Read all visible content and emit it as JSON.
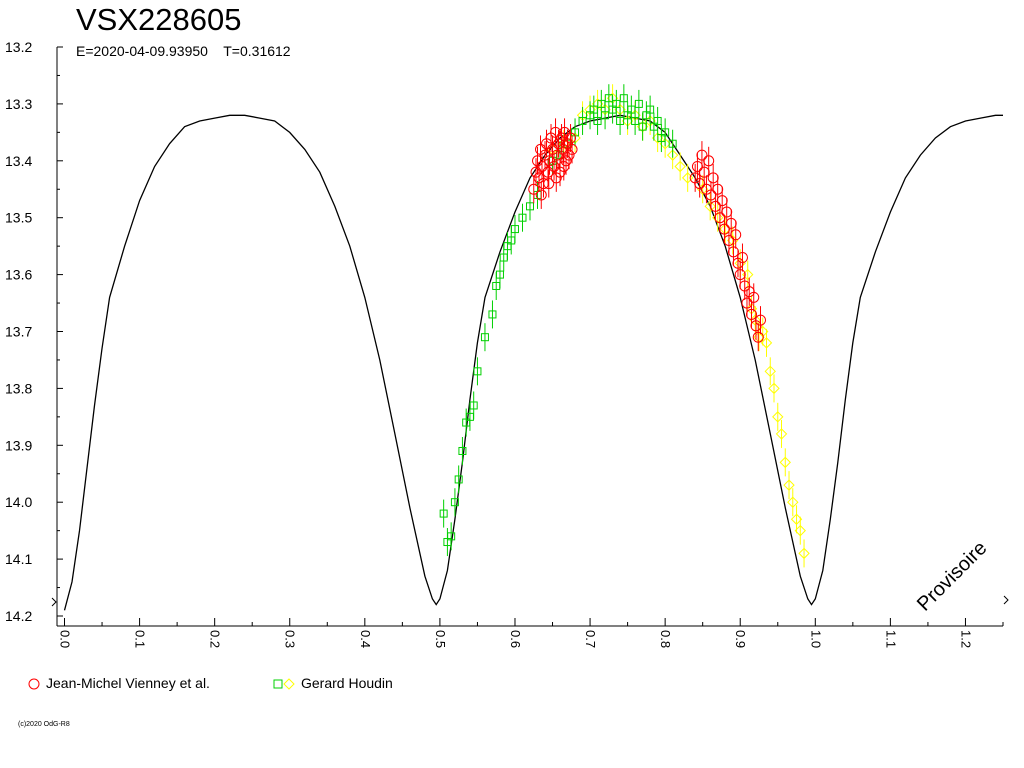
{
  "chart_data": {
    "type": "scatter",
    "title": "VSX228605",
    "subtitle": "E=2020-04-09.93950    T=0.31612",
    "annotation": "Provisoire",
    "xlim": [
      -0.01,
      1.25
    ],
    "ylim": [
      13.2,
      14.2
    ],
    "y_inverted": true,
    "x_ticks": [
      "0.0",
      "0.1",
      "0.2",
      "0.3",
      "0.4",
      "0.5",
      "0.6",
      "0.7",
      "0.8",
      "0.9",
      "1.0",
      "1.1",
      "1.2"
    ],
    "y_ticks": [
      "13.2",
      "13.3",
      "13.4",
      "13.5",
      "13.6",
      "13.7",
      "13.8",
      "13.9",
      "14.0",
      "14.1",
      "14.2"
    ],
    "grid": false,
    "legend_placement": "bottom-left",
    "model_curve": {
      "color": "#000000",
      "points": [
        [
          0.0,
          14.19
        ],
        [
          0.01,
          14.14
        ],
        [
          0.02,
          14.05
        ],
        [
          0.03,
          13.94
        ],
        [
          0.04,
          13.83
        ],
        [
          0.05,
          13.73
        ],
        [
          0.06,
          13.64
        ],
        [
          0.08,
          13.55
        ],
        [
          0.1,
          13.47
        ],
        [
          0.12,
          13.41
        ],
        [
          0.14,
          13.37
        ],
        [
          0.16,
          13.34
        ],
        [
          0.18,
          13.33
        ],
        [
          0.2,
          13.325
        ],
        [
          0.22,
          13.32
        ],
        [
          0.24,
          13.32
        ],
        [
          0.26,
          13.325
        ],
        [
          0.28,
          13.33
        ],
        [
          0.3,
          13.35
        ],
        [
          0.32,
          13.38
        ],
        [
          0.34,
          13.42
        ],
        [
          0.36,
          13.48
        ],
        [
          0.38,
          13.55
        ],
        [
          0.4,
          13.64
        ],
        [
          0.42,
          13.75
        ],
        [
          0.44,
          13.88
        ],
        [
          0.46,
          14.01
        ],
        [
          0.48,
          14.13
        ],
        [
          0.49,
          14.17
        ],
        [
          0.495,
          14.18
        ],
        [
          0.5,
          14.17
        ],
        [
          0.51,
          14.12
        ],
        [
          0.52,
          14.03
        ],
        [
          0.53,
          13.93
        ],
        [
          0.54,
          13.82
        ],
        [
          0.55,
          13.72
        ],
        [
          0.56,
          13.64
        ],
        [
          0.58,
          13.56
        ],
        [
          0.6,
          13.49
        ],
        [
          0.62,
          13.43
        ],
        [
          0.64,
          13.39
        ],
        [
          0.66,
          13.36
        ],
        [
          0.68,
          13.34
        ],
        [
          0.7,
          13.33
        ],
        [
          0.72,
          13.325
        ],
        [
          0.74,
          13.32
        ],
        [
          0.76,
          13.325
        ],
        [
          0.78,
          13.33
        ],
        [
          0.8,
          13.35
        ],
        [
          0.82,
          13.39
        ],
        [
          0.84,
          13.43
        ],
        [
          0.86,
          13.48
        ],
        [
          0.88,
          13.55
        ],
        [
          0.9,
          13.64
        ],
        [
          0.92,
          13.75
        ],
        [
          0.94,
          13.88
        ],
        [
          0.96,
          14.01
        ],
        [
          0.98,
          14.13
        ],
        [
          0.99,
          14.17
        ],
        [
          0.995,
          14.18
        ],
        [
          1.0,
          14.17
        ],
        [
          1.01,
          14.12
        ],
        [
          1.02,
          14.03
        ],
        [
          1.03,
          13.93
        ],
        [
          1.04,
          13.82
        ],
        [
          1.05,
          13.72
        ],
        [
          1.06,
          13.64
        ],
        [
          1.08,
          13.56
        ],
        [
          1.1,
          13.49
        ],
        [
          1.12,
          13.43
        ],
        [
          1.14,
          13.39
        ],
        [
          1.16,
          13.36
        ],
        [
          1.18,
          13.34
        ],
        [
          1.2,
          13.33
        ],
        [
          1.22,
          13.325
        ],
        [
          1.24,
          13.32
        ],
        [
          1.25,
          13.32
        ]
      ]
    },
    "series": [
      {
        "name": "Jean-Michel Vienney et al.",
        "marker": "circle",
        "color": "#ff0000",
        "points": [
          [
            0.625,
            13.45
          ],
          [
            0.628,
            13.42
          ],
          [
            0.63,
            13.4
          ],
          [
            0.632,
            13.43
          ],
          [
            0.634,
            13.38
          ],
          [
            0.636,
            13.41
          ],
          [
            0.638,
            13.44
          ],
          [
            0.64,
            13.39
          ],
          [
            0.642,
            13.37
          ],
          [
            0.644,
            13.42
          ],
          [
            0.646,
            13.4
          ],
          [
            0.648,
            13.36
          ],
          [
            0.65,
            13.38
          ],
          [
            0.652,
            13.41
          ],
          [
            0.654,
            13.35
          ],
          [
            0.656,
            13.39
          ],
          [
            0.658,
            13.37
          ],
          [
            0.66,
            13.42
          ],
          [
            0.662,
            13.36
          ],
          [
            0.664,
            13.38
          ],
          [
            0.666,
            13.35
          ],
          [
            0.668,
            13.4
          ],
          [
            0.67,
            13.37
          ],
          [
            0.672,
            13.39
          ],
          [
            0.674,
            13.36
          ],
          [
            0.676,
            13.38
          ],
          [
            0.635,
            13.46
          ],
          [
            0.645,
            13.44
          ],
          [
            0.655,
            13.43
          ],
          [
            0.665,
            13.41
          ],
          [
            0.84,
            13.43
          ],
          [
            0.843,
            13.41
          ],
          [
            0.846,
            13.44
          ],
          [
            0.849,
            13.39
          ],
          [
            0.852,
            13.42
          ],
          [
            0.855,
            13.45
          ],
          [
            0.858,
            13.4
          ],
          [
            0.861,
            13.46
          ],
          [
            0.864,
            13.43
          ],
          [
            0.867,
            13.48
          ],
          [
            0.87,
            13.45
          ],
          [
            0.873,
            13.5
          ],
          [
            0.876,
            13.47
          ],
          [
            0.879,
            13.52
          ],
          [
            0.882,
            13.49
          ],
          [
            0.885,
            13.54
          ],
          [
            0.888,
            13.51
          ],
          [
            0.891,
            13.56
          ],
          [
            0.894,
            13.53
          ],
          [
            0.897,
            13.58
          ],
          [
            0.9,
            13.6
          ],
          [
            0.903,
            13.57
          ],
          [
            0.906,
            13.62
          ],
          [
            0.909,
            13.65
          ],
          [
            0.912,
            13.63
          ],
          [
            0.915,
            13.67
          ],
          [
            0.918,
            13.64
          ],
          [
            0.921,
            13.69
          ],
          [
            0.924,
            13.71
          ],
          [
            0.927,
            13.68
          ]
        ]
      },
      {
        "name": "Gerard Houdin",
        "marker": "square",
        "color": "#00d000",
        "points": [
          [
            0.505,
            14.02
          ],
          [
            0.51,
            14.07
          ],
          [
            0.515,
            14.06
          ],
          [
            0.52,
            14.0
          ],
          [
            0.525,
            13.96
          ],
          [
            0.53,
            13.91
          ],
          [
            0.535,
            13.86
          ],
          [
            0.54,
            13.85
          ],
          [
            0.545,
            13.83
          ],
          [
            0.55,
            13.77
          ],
          [
            0.56,
            13.71
          ],
          [
            0.57,
            13.67
          ],
          [
            0.575,
            13.62
          ],
          [
            0.58,
            13.6
          ],
          [
            0.585,
            13.57
          ],
          [
            0.59,
            13.55
          ],
          [
            0.595,
            13.54
          ],
          [
            0.6,
            13.52
          ],
          [
            0.61,
            13.5
          ],
          [
            0.62,
            13.48
          ],
          [
            0.63,
            13.46
          ],
          [
            0.65,
            13.4
          ],
          [
            0.66,
            13.39
          ],
          [
            0.67,
            13.37
          ],
          [
            0.68,
            13.35
          ],
          [
            0.69,
            13.33
          ],
          [
            0.7,
            13.32
          ],
          [
            0.705,
            13.31
          ],
          [
            0.71,
            13.33
          ],
          [
            0.715,
            13.3
          ],
          [
            0.72,
            13.32
          ],
          [
            0.725,
            13.29
          ],
          [
            0.73,
            13.31
          ],
          [
            0.735,
            13.3
          ],
          [
            0.74,
            13.33
          ],
          [
            0.745,
            13.29
          ],
          [
            0.75,
            13.32
          ],
          [
            0.755,
            13.31
          ],
          [
            0.76,
            13.33
          ],
          [
            0.765,
            13.3
          ],
          [
            0.77,
            13.34
          ],
          [
            0.775,
            13.32
          ],
          [
            0.78,
            13.31
          ],
          [
            0.785,
            13.34
          ],
          [
            0.79,
            13.33
          ],
          [
            0.795,
            13.36
          ],
          [
            0.8,
            13.35
          ],
          [
            0.81,
            13.37
          ]
        ]
      },
      {
        "name": "Gerard Houdin",
        "marker": "diamond",
        "color": "#ffff00",
        "points": [
          [
            0.65,
            13.38
          ],
          [
            0.665,
            13.37
          ],
          [
            0.68,
            13.36
          ],
          [
            0.69,
            13.32
          ],
          [
            0.7,
            13.31
          ],
          [
            0.71,
            13.3
          ],
          [
            0.72,
            13.31
          ],
          [
            0.73,
            13.29
          ],
          [
            0.74,
            13.31
          ],
          [
            0.75,
            13.33
          ],
          [
            0.76,
            13.32
          ],
          [
            0.77,
            13.34
          ],
          [
            0.78,
            13.33
          ],
          [
            0.79,
            13.36
          ],
          [
            0.8,
            13.37
          ],
          [
            0.81,
            13.39
          ],
          [
            0.82,
            13.41
          ],
          [
            0.83,
            13.43
          ],
          [
            0.85,
            13.45
          ],
          [
            0.86,
            13.48
          ],
          [
            0.87,
            13.5
          ],
          [
            0.88,
            13.52
          ],
          [
            0.89,
            13.54
          ],
          [
            0.9,
            13.58
          ],
          [
            0.91,
            13.6
          ],
          [
            0.915,
            13.66
          ],
          [
            0.92,
            13.68
          ],
          [
            0.925,
            13.71
          ],
          [
            0.93,
            13.7
          ],
          [
            0.935,
            13.72
          ],
          [
            0.94,
            13.77
          ],
          [
            0.945,
            13.8
          ],
          [
            0.95,
            13.85
          ],
          [
            0.955,
            13.88
          ],
          [
            0.96,
            13.93
          ],
          [
            0.965,
            13.97
          ],
          [
            0.97,
            14.0
          ],
          [
            0.975,
            14.03
          ],
          [
            0.98,
            14.05
          ],
          [
            0.985,
            14.09
          ]
        ]
      }
    ]
  },
  "footer": {
    "copyright": "(c)2020 OdG-R8"
  }
}
